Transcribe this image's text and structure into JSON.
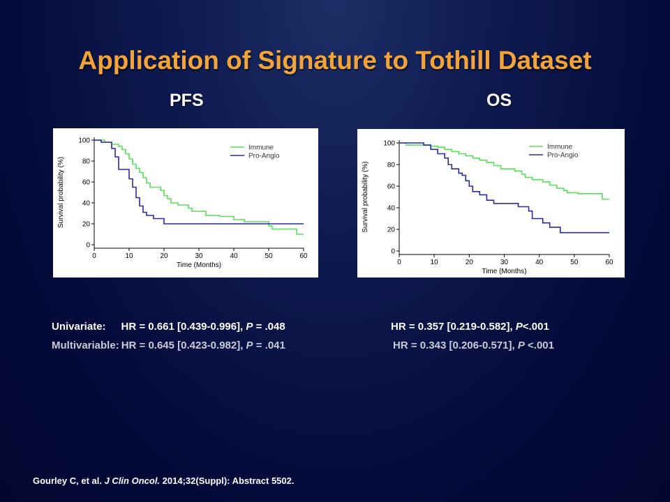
{
  "slide": {
    "title": "Application of Signature to Tothill Dataset",
    "pfs_heading": "PFS",
    "os_heading": "OS"
  },
  "stats": {
    "univariate_label": "Univariate:",
    "multivariable_label": "Multivariable:",
    "pfs_uni_prefix": "HR = 0.661 [0.439-0.996], ",
    "pfs_uni_p": "P",
    "pfs_uni_suffix": " = .048",
    "os_uni_prefix": "HR = 0.357 [0.219-0.582], ",
    "os_uni_p": "P",
    "os_uni_suffix": "<.001",
    "pfs_multi_prefix": "HR = 0.645 [0.423-0.982], ",
    "pfs_multi_p": "P",
    "pfs_multi_suffix": " = .041",
    "os_multi_prefix": "HR = 0.343 [0.206-0.571], ",
    "os_multi_p": "P",
    "os_multi_suffix": " <.001"
  },
  "citation": {
    "authors": "Gourley C, et al. ",
    "journal": "J Clin Oncol.",
    "rest": " 2014;32(Suppl): Abstract 5502."
  },
  "colors": {
    "title": "#f2a33a",
    "immune": "#55e055",
    "pro_angio": "#2a2aa0"
  },
  "chart_data": [
    {
      "type": "line",
      "id": "pfs",
      "xlabel": "Time (Months)",
      "ylabel": "Survival probability (%)",
      "xlim": [
        0,
        60
      ],
      "ylim": [
        0,
        100
      ],
      "xticks": [
        0,
        10,
        20,
        30,
        40,
        50,
        60
      ],
      "yticks": [
        0,
        20,
        40,
        60,
        80,
        100
      ],
      "legend_position": "top-right",
      "series": [
        {
          "name": "Immune",
          "color": "#55e055",
          "points": [
            [
              0,
              100
            ],
            [
              3,
              100
            ],
            [
              3,
              98
            ],
            [
              5,
              98
            ],
            [
              5,
              96
            ],
            [
              7,
              96
            ],
            [
              7,
              94
            ],
            [
              8,
              94
            ],
            [
              8,
              91
            ],
            [
              9,
              91
            ],
            [
              9,
              87
            ],
            [
              10,
              87
            ],
            [
              10,
              82
            ],
            [
              11,
              82
            ],
            [
              11,
              77
            ],
            [
              12,
              77
            ],
            [
              12,
              73
            ],
            [
              13,
              73
            ],
            [
              13,
              69
            ],
            [
              14,
              69
            ],
            [
              14,
              64
            ],
            [
              15,
              64
            ],
            [
              15,
              59
            ],
            [
              16,
              59
            ],
            [
              16,
              55
            ],
            [
              19,
              55
            ],
            [
              19,
              52
            ],
            [
              20,
              52
            ],
            [
              20,
              47
            ],
            [
              21,
              47
            ],
            [
              21,
              44
            ],
            [
              22,
              44
            ],
            [
              22,
              40
            ],
            [
              24,
              40
            ],
            [
              24,
              38
            ],
            [
              27,
              38
            ],
            [
              27,
              35
            ],
            [
              28,
              35
            ],
            [
              28,
              32
            ],
            [
              32,
              32
            ],
            [
              32,
              28
            ],
            [
              36,
              28
            ],
            [
              36,
              27
            ],
            [
              40,
              27
            ],
            [
              40,
              24
            ],
            [
              43,
              24
            ],
            [
              43,
              22
            ],
            [
              50,
              22
            ],
            [
              50,
              18
            ],
            [
              51,
              18
            ],
            [
              51,
              15
            ],
            [
              58,
              15
            ],
            [
              58,
              10
            ],
            [
              60,
              10
            ]
          ]
        },
        {
          "name": "Pro-Angio",
          "color": "#2a2aa0",
          "points": [
            [
              0,
              100
            ],
            [
              2,
              100
            ],
            [
              2,
              98
            ],
            [
              5,
              98
            ],
            [
              5,
              92
            ],
            [
              6,
              92
            ],
            [
              6,
              84
            ],
            [
              7,
              84
            ],
            [
              7,
              72
            ],
            [
              10,
              72
            ],
            [
              10,
              63
            ],
            [
              11,
              63
            ],
            [
              11,
              55
            ],
            [
              12,
              55
            ],
            [
              12,
              45
            ],
            [
              13,
              45
            ],
            [
              13,
              37
            ],
            [
              14,
              37
            ],
            [
              14,
              31
            ],
            [
              15,
              31
            ],
            [
              15,
              28
            ],
            [
              17,
              28
            ],
            [
              17,
              25
            ],
            [
              20,
              25
            ],
            [
              20,
              20
            ],
            [
              60,
              20
            ]
          ]
        }
      ]
    },
    {
      "type": "line",
      "id": "os",
      "xlabel": "Time (Months)",
      "ylabel": "Survival probability (%)",
      "xlim": [
        0,
        60
      ],
      "ylim": [
        0,
        100
      ],
      "xticks": [
        0,
        10,
        20,
        30,
        40,
        50,
        60
      ],
      "yticks": [
        0,
        20,
        40,
        60,
        80,
        100
      ],
      "legend_position": "top-right",
      "series": [
        {
          "name": "Immune",
          "color": "#55e055",
          "points": [
            [
              0,
              100
            ],
            [
              2,
              100
            ],
            [
              2,
              98
            ],
            [
              9,
              98
            ],
            [
              9,
              97
            ],
            [
              11,
              97
            ],
            [
              11,
              96
            ],
            [
              13,
              96
            ],
            [
              13,
              94
            ],
            [
              15,
              94
            ],
            [
              15,
              92
            ],
            [
              17,
              92
            ],
            [
              17,
              90
            ],
            [
              19,
              90
            ],
            [
              19,
              88
            ],
            [
              21,
              88
            ],
            [
              21,
              86
            ],
            [
              23,
              86
            ],
            [
              23,
              84
            ],
            [
              25,
              84
            ],
            [
              25,
              82
            ],
            [
              27,
              82
            ],
            [
              27,
              79
            ],
            [
              29,
              79
            ],
            [
              29,
              76
            ],
            [
              33,
              76
            ],
            [
              33,
              74
            ],
            [
              35,
              74
            ],
            [
              35,
              71
            ],
            [
              36,
              71
            ],
            [
              36,
              68
            ],
            [
              38,
              68
            ],
            [
              38,
              66
            ],
            [
              41,
              66
            ],
            [
              41,
              64
            ],
            [
              43,
              64
            ],
            [
              43,
              61
            ],
            [
              45,
              61
            ],
            [
              45,
              58
            ],
            [
              47,
              58
            ],
            [
              47,
              56
            ],
            [
              48,
              56
            ],
            [
              48,
              54
            ],
            [
              51,
              54
            ],
            [
              51,
              53
            ],
            [
              58,
              53
            ],
            [
              58,
              48
            ],
            [
              60,
              48
            ]
          ]
        },
        {
          "name": "Pro-Angio",
          "color": "#2a2aa0",
          "points": [
            [
              0,
              100
            ],
            [
              7,
              100
            ],
            [
              7,
              98
            ],
            [
              9,
              98
            ],
            [
              9,
              94
            ],
            [
              11,
              94
            ],
            [
              11,
              90
            ],
            [
              13,
              90
            ],
            [
              13,
              86
            ],
            [
              14,
              86
            ],
            [
              14,
              80
            ],
            [
              15,
              80
            ],
            [
              15,
              76
            ],
            [
              17,
              76
            ],
            [
              17,
              72
            ],
            [
              18,
              72
            ],
            [
              18,
              70
            ],
            [
              19,
              70
            ],
            [
              19,
              65
            ],
            [
              20,
              65
            ],
            [
              20,
              60
            ],
            [
              21,
              60
            ],
            [
              21,
              55
            ],
            [
              23,
              55
            ],
            [
              23,
              52
            ],
            [
              25,
              52
            ],
            [
              25,
              47
            ],
            [
              27,
              47
            ],
            [
              27,
              44
            ],
            [
              34,
              44
            ],
            [
              34,
              41
            ],
            [
              37,
              41
            ],
            [
              37,
              37
            ],
            [
              38,
              37
            ],
            [
              38,
              30
            ],
            [
              41,
              30
            ],
            [
              41,
              26
            ],
            [
              43,
              26
            ],
            [
              43,
              22
            ],
            [
              46,
              22
            ],
            [
              46,
              17
            ],
            [
              60,
              17
            ]
          ]
        }
      ]
    }
  ]
}
